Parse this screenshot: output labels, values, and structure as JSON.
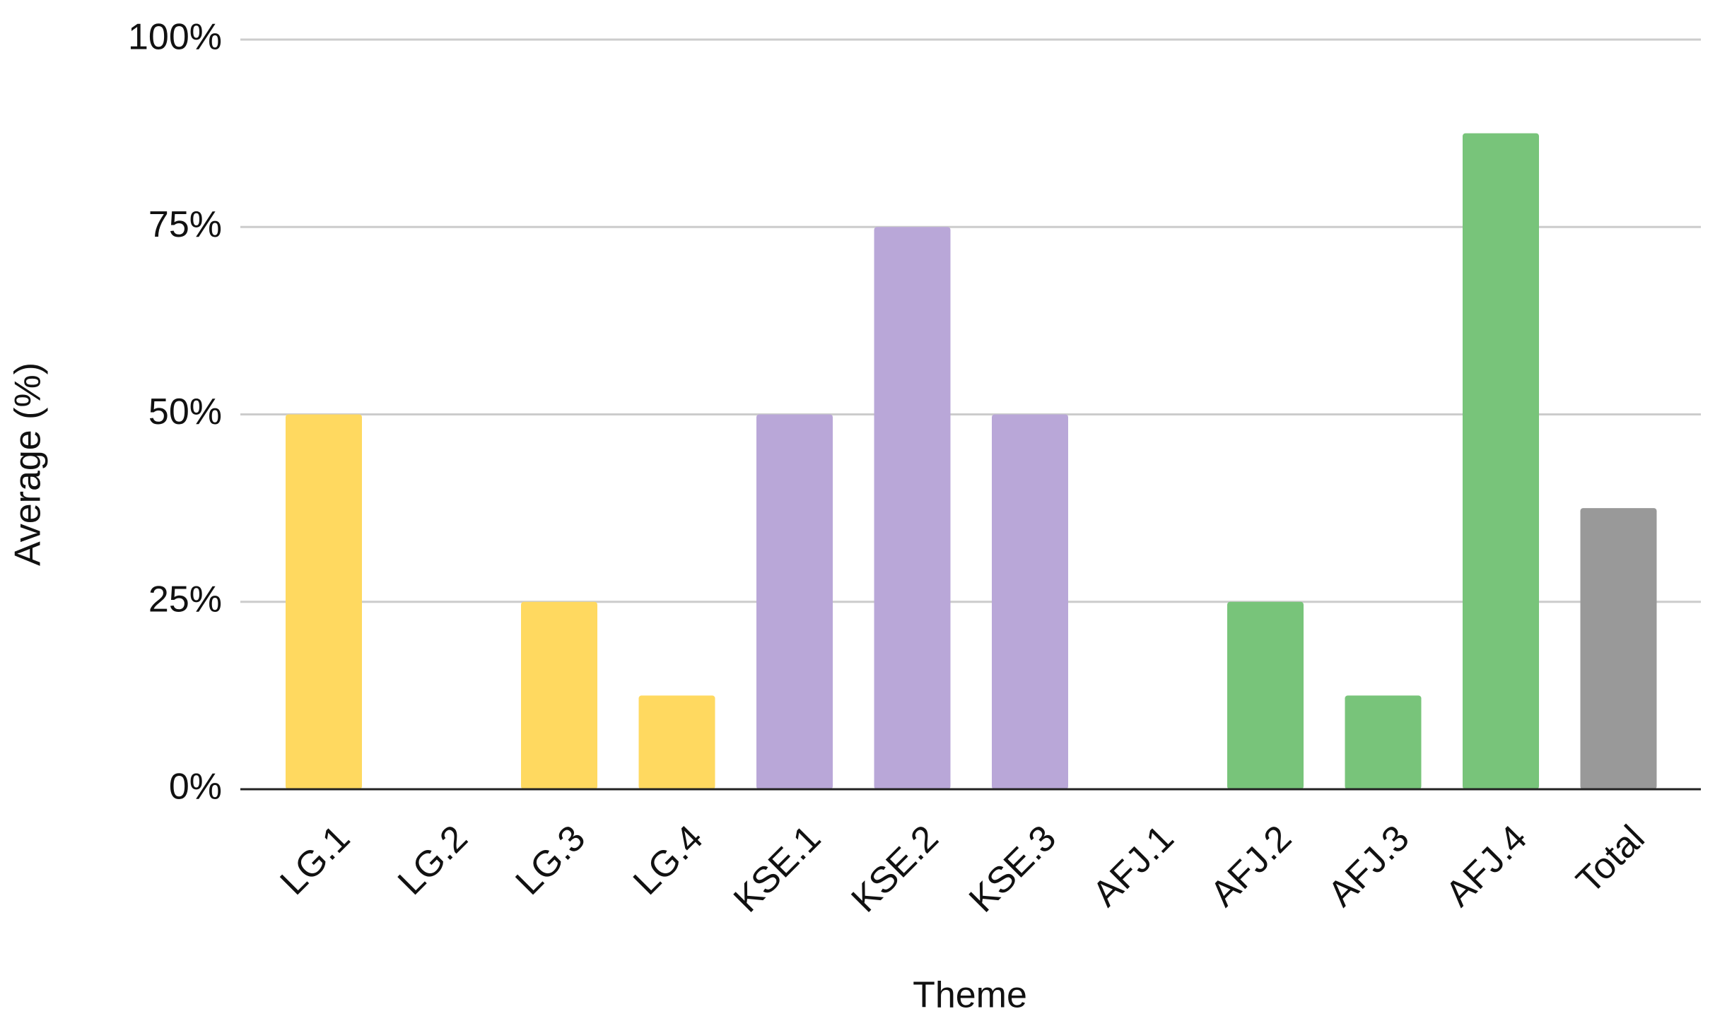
{
  "chart_data": {
    "type": "bar",
    "x_label": "Theme",
    "y_label": "Average (%)",
    "categories": [
      "LG.1",
      "LG.2",
      "LG.3",
      "LG.4",
      "KSE.1",
      "KSE.2",
      "KSE.3",
      "AFJ.1",
      "AFJ.2",
      "AFJ.3",
      "AFJ.4",
      "Total"
    ],
    "values": [
      50,
      0,
      25,
      12.5,
      50,
      75,
      50,
      0,
      25,
      12.5,
      87.5,
      37.5
    ],
    "colors": [
      "#ffd960",
      "#ffd960",
      "#ffd960",
      "#ffd960",
      "#b9a7d8",
      "#b9a7d8",
      "#b9a7d8",
      "#78c47a",
      "#78c47a",
      "#78c47a",
      "#78c47a",
      "#999999"
    ],
    "ylim": [
      0,
      100
    ],
    "yticks": [
      {
        "value": 0,
        "label": "0%"
      },
      {
        "value": 25,
        "label": "25%"
      },
      {
        "value": 50,
        "label": "50%"
      },
      {
        "value": 75,
        "label": "75%"
      },
      {
        "value": 100,
        "label": "100%"
      }
    ],
    "grid": true
  }
}
